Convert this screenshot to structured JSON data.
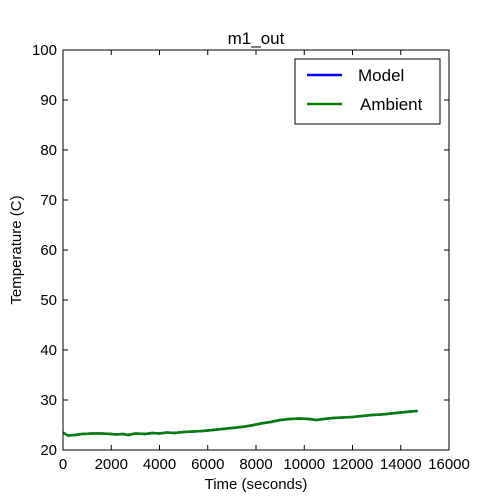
{
  "chart_data": {
    "type": "line",
    "title": "m1_out",
    "xlabel": "Time (seconds)",
    "ylabel": "Temperature (C)",
    "xlim": [
      0,
      16000
    ],
    "ylim": [
      20,
      100
    ],
    "xticks": [
      0,
      2000,
      4000,
      6000,
      8000,
      10000,
      12000,
      14000,
      16000
    ],
    "yticks": [
      20,
      30,
      40,
      50,
      60,
      70,
      80,
      90,
      100
    ],
    "grid": false,
    "legend_position": "top-right",
    "series": [
      {
        "name": "Model",
        "color": "#0000ff",
        "x": [
          0,
          200,
          500,
          800,
          1200,
          1600,
          2000,
          2200,
          2500,
          2700,
          3000,
          3400,
          3700,
          4000,
          4300,
          4600,
          5000,
          5400,
          5800,
          6200,
          6600,
          7000,
          7400,
          7800,
          8200,
          8600,
          9000,
          9400,
          9800,
          10200,
          10500,
          10800,
          11200,
          11600,
          12000,
          12400,
          12800,
          13200,
          13600,
          14000,
          14400,
          14700
        ],
        "y": [
          23.5,
          22.9,
          23.0,
          23.2,
          23.3,
          23.3,
          23.2,
          23.1,
          23.2,
          23.0,
          23.3,
          23.2,
          23.4,
          23.3,
          23.5,
          23.4,
          23.6,
          23.7,
          23.8,
          24.0,
          24.2,
          24.4,
          24.6,
          24.9,
          25.3,
          25.6,
          26.0,
          26.2,
          26.3,
          26.2,
          26.0,
          26.2,
          26.4,
          26.5,
          26.6,
          26.8,
          27.0,
          27.1,
          27.3,
          27.5,
          27.7,
          27.8
        ]
      },
      {
        "name": "Ambient",
        "color": "#008000",
        "x": [
          0,
          200,
          500,
          800,
          1200,
          1600,
          2000,
          2200,
          2500,
          2700,
          3000,
          3400,
          3700,
          4000,
          4300,
          4600,
          5000,
          5400,
          5800,
          6200,
          6600,
          7000,
          7400,
          7800,
          8200,
          8600,
          9000,
          9400,
          9800,
          10200,
          10500,
          10800,
          11200,
          11600,
          12000,
          12400,
          12800,
          13200,
          13600,
          14000,
          14400,
          14700
        ],
        "y": [
          23.5,
          22.9,
          23.0,
          23.2,
          23.3,
          23.3,
          23.2,
          23.1,
          23.2,
          23.0,
          23.3,
          23.2,
          23.4,
          23.3,
          23.5,
          23.4,
          23.6,
          23.7,
          23.8,
          24.0,
          24.2,
          24.4,
          24.6,
          24.9,
          25.3,
          25.6,
          26.0,
          26.2,
          26.3,
          26.2,
          26.0,
          26.2,
          26.4,
          26.5,
          26.6,
          26.8,
          27.0,
          27.1,
          27.3,
          27.5,
          27.7,
          27.8
        ]
      }
    ]
  }
}
